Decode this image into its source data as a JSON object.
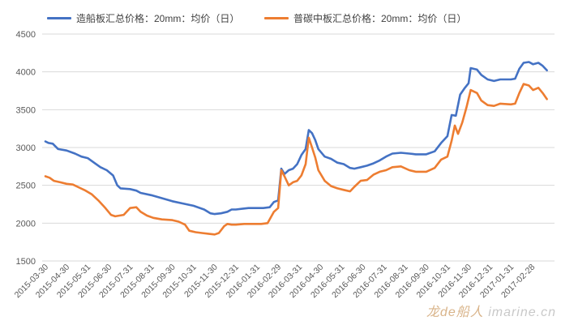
{
  "legend": {
    "ship": "造船板汇总价格：20mm：均价（日）",
    "carbon": "普碳中板汇总价格：20mm：均价（日）"
  },
  "watermark": {
    "brand": "龙de船人",
    "site": "imarine.cn"
  },
  "chart_data": {
    "type": "line",
    "ylim": [
      1500,
      4500
    ],
    "yticks": [
      1500,
      2000,
      2500,
      3000,
      3500,
      4000,
      4500
    ],
    "grid": true,
    "legend_position": "top",
    "x_categories": [
      "2015-03-30",
      "2015-04-30",
      "2015-05-31",
      "2015-06-30",
      "2015-07-31",
      "2015-08-31",
      "2015-09-30",
      "2015-10-31",
      "2015-11-30",
      "2015-12-31",
      "2016-01-31",
      "2016-02-29",
      "2016-03-31",
      "2016-04-30",
      "2016-05-31",
      "2016-06-30",
      "2016-07-31",
      "2016-08-31",
      "2016-09-30",
      "2016-10-31",
      "2016-11-30",
      "2016-12-31",
      "2017-01-31",
      "2017-02-28"
    ],
    "series": [
      {
        "name": "造船板汇总价格：20mm：均价（日）",
        "color": "#4472c4",
        "points": [
          [
            0,
            3080
          ],
          [
            0.15,
            3060
          ],
          [
            0.35,
            3050
          ],
          [
            0.6,
            2980
          ],
          [
            1,
            2960
          ],
          [
            1.4,
            2920
          ],
          [
            1.7,
            2880
          ],
          [
            2,
            2860
          ],
          [
            2.3,
            2800
          ],
          [
            2.6,
            2740
          ],
          [
            2.9,
            2700
          ],
          [
            3.2,
            2630
          ],
          [
            3.4,
            2500
          ],
          [
            3.55,
            2460
          ],
          [
            4,
            2450
          ],
          [
            4.3,
            2430
          ],
          [
            4.5,
            2400
          ],
          [
            5,
            2370
          ],
          [
            5.5,
            2330
          ],
          [
            6,
            2290
          ],
          [
            6.5,
            2260
          ],
          [
            7,
            2230
          ],
          [
            7.5,
            2180
          ],
          [
            7.8,
            2130
          ],
          [
            8,
            2120
          ],
          [
            8.3,
            2130
          ],
          [
            8.6,
            2150
          ],
          [
            8.8,
            2180
          ],
          [
            9,
            2180
          ],
          [
            9.3,
            2190
          ],
          [
            9.6,
            2200
          ],
          [
            10,
            2200
          ],
          [
            10.3,
            2200
          ],
          [
            10.6,
            2210
          ],
          [
            10.8,
            2280
          ],
          [
            11,
            2300
          ],
          [
            11.15,
            2720
          ],
          [
            11.3,
            2650
          ],
          [
            11.5,
            2700
          ],
          [
            11.7,
            2720
          ],
          [
            11.9,
            2780
          ],
          [
            12.1,
            2900
          ],
          [
            12.3,
            2980
          ],
          [
            12.45,
            3230
          ],
          [
            12.6,
            3190
          ],
          [
            12.75,
            3100
          ],
          [
            12.9,
            2980
          ],
          [
            13.2,
            2880
          ],
          [
            13.5,
            2850
          ],
          [
            13.8,
            2800
          ],
          [
            14.1,
            2780
          ],
          [
            14.4,
            2730
          ],
          [
            14.6,
            2720
          ],
          [
            14.9,
            2740
          ],
          [
            15.2,
            2760
          ],
          [
            15.5,
            2790
          ],
          [
            15.8,
            2830
          ],
          [
            16.1,
            2880
          ],
          [
            16.4,
            2920
          ],
          [
            16.8,
            2930
          ],
          [
            17.2,
            2920
          ],
          [
            17.5,
            2910
          ],
          [
            18,
            2910
          ],
          [
            18.4,
            2950
          ],
          [
            18.7,
            3060
          ],
          [
            19,
            3150
          ],
          [
            19.2,
            3430
          ],
          [
            19.4,
            3420
          ],
          [
            19.6,
            3700
          ],
          [
            19.8,
            3780
          ],
          [
            20,
            3850
          ],
          [
            20.1,
            4050
          ],
          [
            20.4,
            4030
          ],
          [
            20.6,
            3960
          ],
          [
            20.9,
            3900
          ],
          [
            21.2,
            3880
          ],
          [
            21.5,
            3900
          ],
          [
            22,
            3900
          ],
          [
            22.2,
            3910
          ],
          [
            22.4,
            4040
          ],
          [
            22.6,
            4120
          ],
          [
            22.85,
            4130
          ],
          [
            23.05,
            4100
          ],
          [
            23.3,
            4120
          ],
          [
            23.5,
            4080
          ],
          [
            23.7,
            4020
          ]
        ]
      },
      {
        "name": "普碳中板汇总价格：20mm：均价（日）",
        "color": "#ed7d31",
        "points": [
          [
            0,
            2620
          ],
          [
            0.2,
            2600
          ],
          [
            0.4,
            2560
          ],
          [
            0.7,
            2540
          ],
          [
            1,
            2520
          ],
          [
            1.3,
            2510
          ],
          [
            1.6,
            2470
          ],
          [
            1.9,
            2430
          ],
          [
            2.2,
            2380
          ],
          [
            2.5,
            2300
          ],
          [
            2.8,
            2210
          ],
          [
            3.1,
            2110
          ],
          [
            3.3,
            2090
          ],
          [
            3.5,
            2100
          ],
          [
            3.7,
            2110
          ],
          [
            4,
            2200
          ],
          [
            4.3,
            2210
          ],
          [
            4.5,
            2150
          ],
          [
            4.8,
            2100
          ],
          [
            5.1,
            2070
          ],
          [
            5.5,
            2050
          ],
          [
            6,
            2040
          ],
          [
            6.3,
            2020
          ],
          [
            6.6,
            1980
          ],
          [
            6.8,
            1900
          ],
          [
            7.1,
            1880
          ],
          [
            7.4,
            1870
          ],
          [
            7.7,
            1860
          ],
          [
            8,
            1850
          ],
          [
            8.2,
            1870
          ],
          [
            8.45,
            1960
          ],
          [
            8.6,
            1990
          ],
          [
            8.8,
            1980
          ],
          [
            9,
            1980
          ],
          [
            9.4,
            1990
          ],
          [
            9.8,
            1990
          ],
          [
            10.2,
            1990
          ],
          [
            10.5,
            2000
          ],
          [
            10.8,
            2150
          ],
          [
            11,
            2200
          ],
          [
            11.15,
            2700
          ],
          [
            11.3,
            2620
          ],
          [
            11.5,
            2500
          ],
          [
            11.7,
            2540
          ],
          [
            11.9,
            2560
          ],
          [
            12.1,
            2630
          ],
          [
            12.3,
            2780
          ],
          [
            12.45,
            3130
          ],
          [
            12.6,
            3000
          ],
          [
            12.75,
            2870
          ],
          [
            12.9,
            2700
          ],
          [
            13.2,
            2560
          ],
          [
            13.5,
            2490
          ],
          [
            13.8,
            2460
          ],
          [
            14.1,
            2440
          ],
          [
            14.4,
            2420
          ],
          [
            14.6,
            2480
          ],
          [
            14.9,
            2560
          ],
          [
            15.2,
            2570
          ],
          [
            15.5,
            2640
          ],
          [
            15.8,
            2680
          ],
          [
            16.1,
            2700
          ],
          [
            16.4,
            2740
          ],
          [
            16.8,
            2750
          ],
          [
            17.2,
            2700
          ],
          [
            17.5,
            2680
          ],
          [
            18,
            2680
          ],
          [
            18.4,
            2730
          ],
          [
            18.7,
            2840
          ],
          [
            19,
            2880
          ],
          [
            19.2,
            3090
          ],
          [
            19.35,
            3290
          ],
          [
            19.5,
            3180
          ],
          [
            19.7,
            3330
          ],
          [
            19.9,
            3530
          ],
          [
            20.1,
            3760
          ],
          [
            20.4,
            3720
          ],
          [
            20.6,
            3620
          ],
          [
            20.9,
            3560
          ],
          [
            21.2,
            3550
          ],
          [
            21.5,
            3580
          ],
          [
            22,
            3570
          ],
          [
            22.2,
            3580
          ],
          [
            22.4,
            3720
          ],
          [
            22.6,
            3840
          ],
          [
            22.85,
            3820
          ],
          [
            23.05,
            3760
          ],
          [
            23.3,
            3790
          ],
          [
            23.5,
            3720
          ],
          [
            23.7,
            3640
          ]
        ]
      }
    ]
  }
}
